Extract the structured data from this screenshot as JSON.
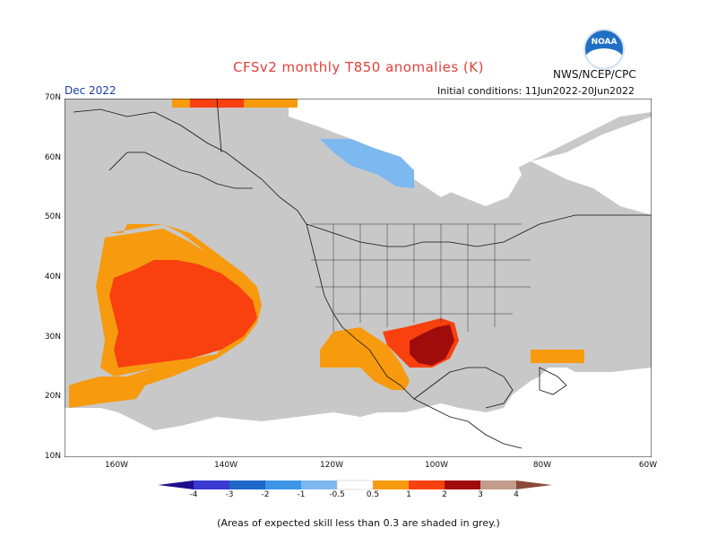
{
  "title": "CFSv2 monthly T850 anomalies (K)",
  "agency": "NWS/NCEP/CPC",
  "logo_text": "NOAA",
  "month": "Dec 2022",
  "initial_conditions": "Initial conditions: 11Jun2022-20Jun2022",
  "lat_labels": [
    "70N",
    "60N",
    "50N",
    "40N",
    "30N",
    "20N",
    "10N"
  ],
  "lon_labels": [
    "160W",
    "140W",
    "120W",
    "100W",
    "80W",
    "60W"
  ],
  "colorbar": {
    "labels": [
      "-4",
      "-3",
      "-2",
      "-1",
      "-0.5",
      "0.5",
      "1",
      "2",
      "3",
      "4"
    ],
    "colors": [
      "#1f0f8f",
      "#3a3ad2",
      "#1c67c7",
      "#3d95e6",
      "#7db8f0",
      "#ffffff",
      "#f79a0e",
      "#f9400f",
      "#a00c0c",
      "#c39c8c",
      "#8a4a3a"
    ]
  },
  "note": "(Areas of expected skill less than 0.3 are shaded in grey.)",
  "colors": {
    "grey": "#c8c8c8",
    "orange": "#f79a0e",
    "red": "#f9400f",
    "darkred": "#a00c0c",
    "lightblue": "#7db8f0",
    "title": "#e0403a"
  }
}
